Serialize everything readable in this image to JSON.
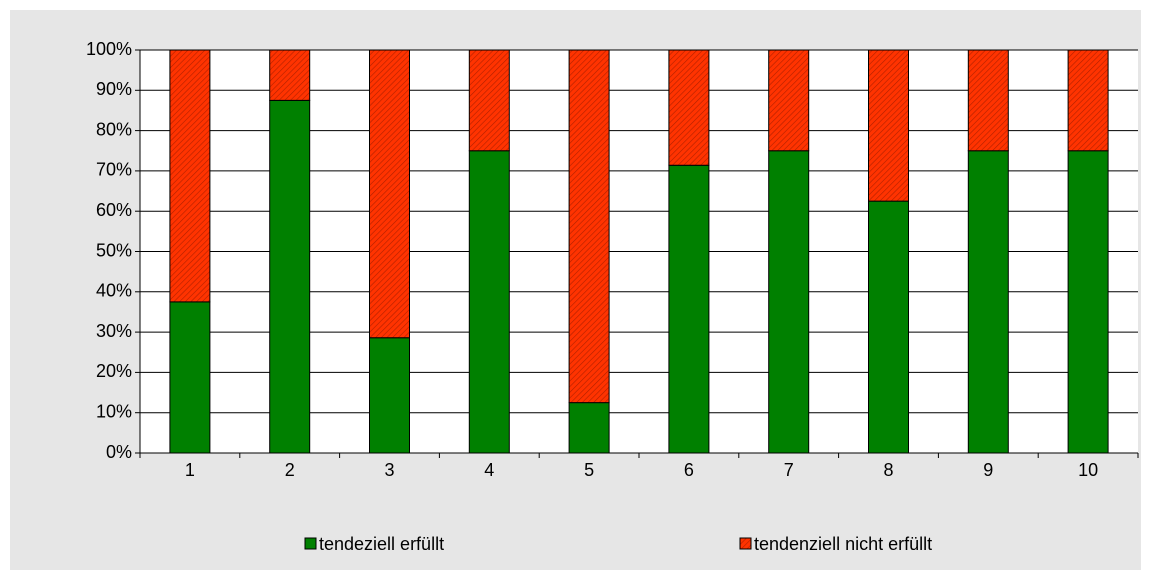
{
  "chart_data": {
    "type": "stacked_bar",
    "categories": [
      "1",
      "2",
      "3",
      "4",
      "5",
      "6",
      "7",
      "8",
      "9",
      "10"
    ],
    "series": [
      {
        "name": "tendeziell erfüllt",
        "color": "#008000",
        "values": [
          37.5,
          87.5,
          28.6,
          75,
          12.5,
          71.4,
          75,
          62.5,
          75,
          75
        ]
      },
      {
        "name": "tendenziell nicht erfüllt",
        "color": "#ff3300",
        "values": [
          62.5,
          12.5,
          71.4,
          25,
          87.5,
          28.6,
          25,
          37.5,
          25,
          25
        ]
      }
    ],
    "ylim": [
      0,
      100
    ],
    "yticks": [
      {
        "value": 0,
        "label": "0%"
      },
      {
        "value": 10,
        "label": "10%"
      },
      {
        "value": 20,
        "label": "20%"
      },
      {
        "value": 30,
        "label": "30%"
      },
      {
        "value": 40,
        "label": "40%"
      },
      {
        "value": 50,
        "label": "50%"
      },
      {
        "value": 60,
        "label": "60%"
      },
      {
        "value": 70,
        "label": "70%"
      },
      {
        "value": 80,
        "label": "80%"
      },
      {
        "value": 90,
        "label": "90%"
      },
      {
        "value": 100,
        "label": "100%"
      }
    ],
    "grid": true,
    "legend": "bottom"
  }
}
